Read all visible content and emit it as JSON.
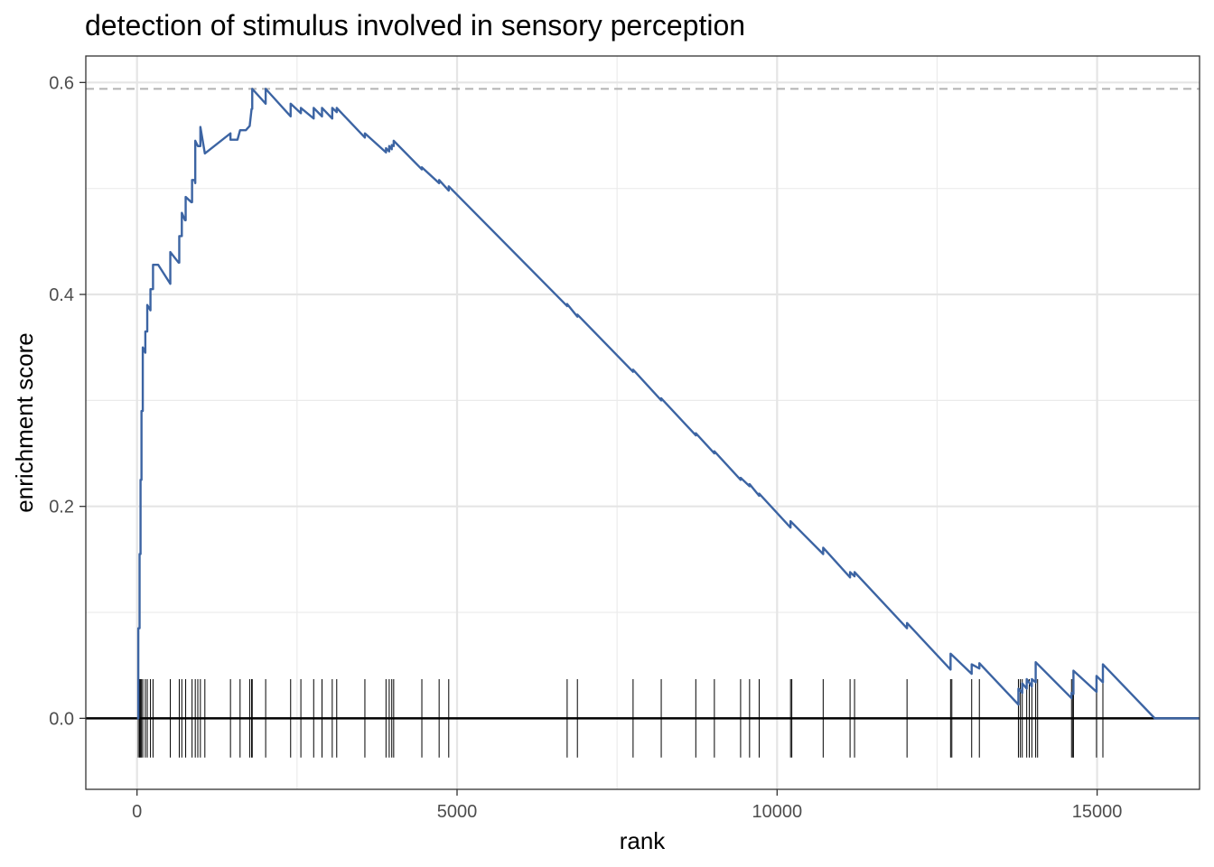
{
  "chart_data": {
    "type": "line",
    "title": "detection of stimulus involved in sensory perception",
    "xlabel": "rank",
    "ylabel": "enrichment score",
    "xlim": [
      -800,
      16600
    ],
    "ylim": [
      -0.067,
      0.625
    ],
    "x_ticks": [
      0,
      5000,
      10000,
      15000
    ],
    "x_tick_labels": [
      "0",
      "5000",
      "10000",
      "15000"
    ],
    "y_ticks": [
      0,
      0.2,
      0.4,
      0.6
    ],
    "y_tick_labels": [
      "0.0",
      "0.2",
      "0.4",
      "0.6"
    ],
    "grid": true,
    "line_color": "#3c64a3",
    "max_es": 0.594,
    "max_es_line_color": "#b3b3b3",
    "series": [
      {
        "x": [
          0,
          20,
          20,
          40,
          40,
          55,
          55,
          70,
          70,
          90,
          90,
          130,
          130,
          160,
          160,
          210,
          210,
          250,
          250,
          330,
          520,
          520,
          650,
          660,
          660,
          700,
          700,
          750,
          760,
          760,
          850,
          860,
          860,
          900,
          910,
          910,
          950,
          990,
          990,
          1060,
          1460,
          1460,
          1570,
          1610,
          1610,
          1700,
          1760,
          1760,
          1790,
          1800,
          1800,
          2010,
          2010,
          2400,
          2400,
          2560,
          2560,
          2760,
          2760,
          2890,
          2890,
          3050,
          3050,
          3120,
          3120,
          3560,
          3560,
          3890,
          3890,
          3940,
          3940,
          3980,
          3980,
          4010,
          4010,
          4450,
          4450,
          4720,
          4720,
          4870,
          4870,
          6720,
          6720,
          6880,
          6880,
          7750,
          7750,
          8190,
          8190,
          8730,
          8730,
          9020,
          9020,
          9430,
          9430,
          9570,
          9570,
          9720,
          9720,
          10210,
          10210,
          10720,
          10720,
          11140,
          11140,
          11210,
          11210,
          12030,
          12030,
          12710,
          12710,
          13040,
          13040,
          13160,
          13160,
          13770,
          13770,
          13830,
          13830,
          13900,
          13900,
          13980,
          13980,
          14040,
          14040,
          14600,
          14600,
          14630,
          14630,
          14990,
          14990,
          15090,
          15090,
          15900,
          16600
        ],
        "y": [
          0,
          0,
          0.085,
          0.085,
          0.155,
          0.155,
          0.225,
          0.225,
          0.29,
          0.29,
          0.35,
          0.345,
          0.365,
          0.365,
          0.39,
          0.385,
          0.405,
          0.405,
          0.428,
          0.428,
          0.41,
          0.44,
          0.43,
          0.43,
          0.455,
          0.455,
          0.477,
          0.47,
          0.47,
          0.492,
          0.487,
          0.487,
          0.508,
          0.508,
          0.505,
          0.545,
          0.54,
          0.54,
          0.558,
          0.533,
          0.552,
          0.546,
          0.546,
          0.555,
          0.555,
          0.555,
          0.559,
          0.559,
          0.575,
          0.575,
          0.594,
          0.58,
          0.594,
          0.568,
          0.58,
          0.571,
          0.576,
          0.566,
          0.576,
          0.568,
          0.576,
          0.566,
          0.576,
          0.572,
          0.576,
          0.548,
          0.552,
          0.534,
          0.538,
          0.535,
          0.54,
          0.537,
          0.541,
          0.54,
          0.545,
          0.518,
          0.52,
          0.505,
          0.508,
          0.498,
          0.502,
          0.389,
          0.391,
          0.379,
          0.381,
          0.327,
          0.329,
          0.3,
          0.302,
          0.267,
          0.269,
          0.25,
          0.252,
          0.225,
          0.227,
          0.219,
          0.221,
          0.21,
          0.212,
          0.18,
          0.186,
          0.155,
          0.161,
          0.133,
          0.138,
          0.134,
          0.138,
          0.085,
          0.09,
          0.046,
          0.061,
          0.042,
          0.051,
          0.047,
          0.052,
          0.013,
          0.028,
          0.024,
          0.033,
          0.028,
          0.037,
          0.03,
          0.037,
          0.034,
          0.053,
          0.019,
          0.024,
          0.023,
          0.045,
          0.025,
          0.04,
          0.034,
          0.051,
          0,
          0
        ]
      }
    ],
    "hits": [
      20,
      40,
      55,
      70,
      90,
      130,
      160,
      210,
      250,
      520,
      660,
      700,
      760,
      860,
      910,
      950,
      990,
      1060,
      1460,
      1610,
      1760,
      1790,
      1800,
      2010,
      2400,
      2560,
      2760,
      2890,
      3050,
      3120,
      3560,
      3890,
      3940,
      3980,
      4010,
      4450,
      4720,
      4870,
      6720,
      6880,
      7750,
      8190,
      8730,
      9020,
      9430,
      9570,
      9720,
      10210,
      10230,
      10720,
      11140,
      11210,
      12030,
      12710,
      12730,
      13040,
      13160,
      13770,
      13800,
      13830,
      13900,
      13940,
      13980,
      14040,
      14070,
      14600,
      14620,
      14630,
      14990,
      15090
    ],
    "hit_range": [
      -0.037,
      0.037
    ]
  }
}
